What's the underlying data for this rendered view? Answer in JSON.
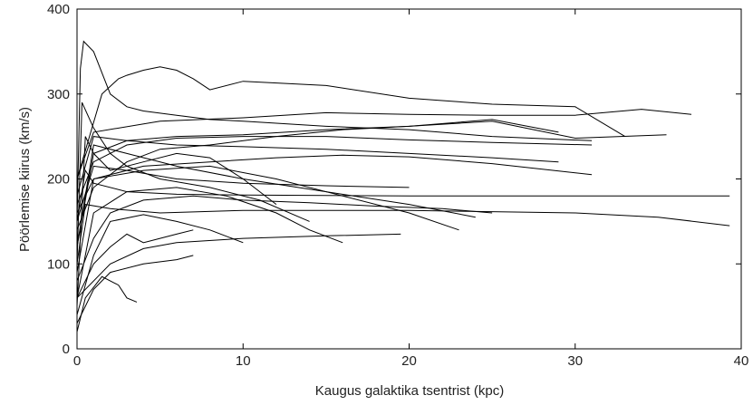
{
  "chart_data": {
    "type": "line",
    "x_label": "Kaugus galaktika tsentrist (kpc)",
    "y_label": "Pöörlemise kiirus (km/s)",
    "xlim": [
      0,
      40
    ],
    "ylim": [
      0,
      400
    ],
    "xticks": [
      0,
      10,
      20,
      30,
      40
    ],
    "yticks": [
      0,
      100,
      200,
      300,
      400
    ],
    "series": [
      {
        "color": "#000000",
        "x": [
          0,
          0.5,
          1,
          3,
          6,
          10,
          20,
          30,
          39.3
        ],
        "values": [
          150,
          210,
          195,
          185,
          182,
          181,
          180,
          180,
          180
        ]
      },
      {
        "color": "#000000",
        "x": [
          0,
          0.5,
          2,
          5,
          10,
          20,
          30,
          35,
          39.3
        ],
        "values": [
          100,
          170,
          165,
          160,
          163,
          163,
          160,
          155,
          145
        ]
      },
      {
        "color": "#000000",
        "x": [
          0,
          1,
          5,
          10,
          15,
          20,
          25,
          30,
          34,
          37
        ],
        "values": [
          200,
          255,
          268,
          272,
          278,
          276,
          275,
          275,
          282,
          276
        ]
      },
      {
        "color": "#000000",
        "x": [
          0,
          0.2,
          0.4,
          1,
          2,
          3,
          4,
          6,
          8,
          10,
          15,
          20,
          25,
          31
        ],
        "values": [
          150,
          330,
          362,
          350,
          300,
          285,
          280,
          275,
          270,
          268,
          262,
          258,
          250,
          245
        ]
      },
      {
        "color": "#000000",
        "x": [
          0,
          1.5,
          2.5,
          3,
          4,
          5,
          6,
          7,
          8,
          10,
          15,
          20,
          25,
          30,
          33
        ],
        "values": [
          200,
          300,
          318,
          322,
          328,
          332,
          328,
          318,
          305,
          315,
          310,
          295,
          288,
          285,
          250
        ]
      },
      {
        "color": "#000000",
        "x": [
          0,
          1,
          3,
          6,
          10,
          15,
          20,
          25,
          30,
          35.5
        ],
        "values": [
          120,
          230,
          245,
          250,
          252,
          258,
          262,
          268,
          248,
          252
        ]
      },
      {
        "color": "#000000",
        "x": [
          0,
          0.5,
          1.5,
          2.5,
          3,
          3.6
        ],
        "values": [
          20,
          60,
          85,
          75,
          60,
          55
        ]
      },
      {
        "color": "#000000",
        "x": [
          0,
          1,
          2,
          4,
          6,
          7
        ],
        "values": [
          30,
          70,
          90,
          100,
          105,
          110
        ]
      },
      {
        "color": "#000000",
        "x": [
          0,
          2,
          4,
          6,
          10,
          15,
          19.5
        ],
        "values": [
          60,
          100,
          118,
          125,
          130,
          133,
          135
        ]
      },
      {
        "color": "#000000",
        "x": [
          0,
          1,
          2,
          4,
          6,
          8,
          10
        ],
        "values": [
          40,
          110,
          150,
          158,
          150,
          140,
          125
        ]
      },
      {
        "color": "#000000",
        "x": [
          0,
          1,
          3,
          6,
          9,
          12,
          14,
          16
        ],
        "values": [
          60,
          160,
          185,
          190,
          180,
          160,
          140,
          125
        ]
      },
      {
        "color": "#000000",
        "x": [
          0,
          1,
          4,
          8,
          12,
          16,
          20,
          23
        ],
        "values": [
          90,
          200,
          210,
          215,
          200,
          180,
          160,
          140
        ]
      },
      {
        "color": "#000000",
        "x": [
          0,
          1,
          3,
          6,
          10,
          15,
          20,
          24
        ],
        "values": [
          120,
          240,
          230,
          215,
          200,
          185,
          170,
          155
        ]
      },
      {
        "color": "#000000",
        "x": [
          0,
          1,
          3,
          6,
          10,
          15,
          20
        ],
        "values": [
          150,
          215,
          210,
          200,
          195,
          192,
          190
        ]
      },
      {
        "color": "#000000",
        "x": [
          0,
          1,
          3,
          6,
          10,
          15,
          20,
          25,
          29
        ],
        "values": [
          180,
          250,
          245,
          240,
          238,
          235,
          230,
          225,
          220
        ]
      },
      {
        "color": "#000000",
        "x": [
          0,
          1,
          4,
          8,
          12,
          16,
          20,
          25,
          31
        ],
        "values": [
          160,
          200,
          215,
          220,
          225,
          228,
          226,
          218,
          205
        ]
      },
      {
        "color": "#000000",
        "x": [
          0,
          1,
          3,
          6,
          10,
          15,
          20,
          25,
          31
        ],
        "values": [
          170,
          220,
          240,
          248,
          250,
          250,
          246,
          243,
          240
        ]
      },
      {
        "color": "#000000",
        "x": [
          0,
          1,
          2,
          3,
          4,
          5,
          6,
          7
        ],
        "values": [
          60,
          100,
          120,
          135,
          125,
          130,
          135,
          140
        ]
      },
      {
        "color": "#000000",
        "x": [
          0,
          0.5,
          1,
          2,
          4,
          6,
          8,
          10,
          12
        ],
        "values": [
          50,
          250,
          230,
          210,
          220,
          230,
          225,
          200,
          170
        ]
      },
      {
        "color": "#000000",
        "x": [
          0,
          0.3,
          1,
          2,
          3,
          5,
          8,
          11,
          14
        ],
        "values": [
          100,
          290,
          260,
          230,
          215,
          200,
          190,
          175,
          150
        ]
      },
      {
        "color": "#000000",
        "x": [
          0,
          1,
          2,
          4,
          7,
          10,
          14,
          18,
          22,
          25
        ],
        "values": [
          80,
          130,
          160,
          175,
          180,
          175,
          172,
          168,
          165,
          160
        ]
      },
      {
        "color": "#000000",
        "x": [
          0,
          1,
          3,
          5,
          8,
          12,
          16,
          20,
          25,
          29
        ],
        "values": [
          140,
          190,
          220,
          235,
          240,
          250,
          258,
          262,
          270,
          255
        ]
      }
    ]
  }
}
